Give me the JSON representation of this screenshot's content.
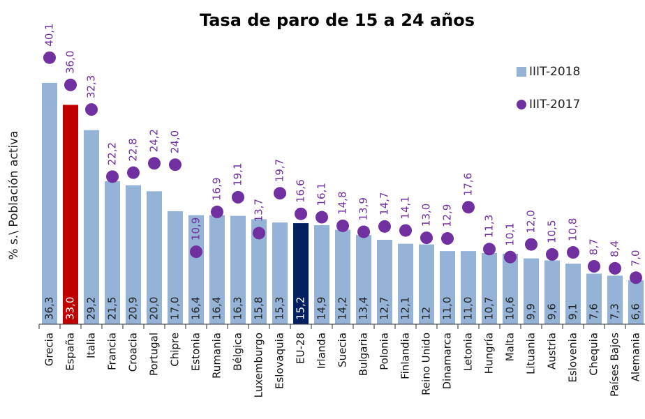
{
  "chart_data": {
    "type": "bar",
    "title": "Tasa de paro de 15 a 24 años",
    "y_label": "% s.\\ Población activa",
    "categories": [
      "Grecia",
      "España",
      "Italia",
      "Francia",
      "Croacia",
      "Portugal",
      "Chipre",
      "Estonia",
      "Rumania",
      "Bélgica",
      "Luxemburgo",
      "Eslovaquia",
      "EU-28",
      "Irlanda",
      "Suecia",
      "Bulgaria",
      "Polonia",
      "Finlandia",
      "Reino Unido",
      "Dinamarca",
      "Letonia",
      "Hungría",
      "Malta",
      "Lituania",
      "Austria",
      "Eslovenia",
      "Chequia",
      "Países Bajos",
      "Alemania"
    ],
    "ylim": [
      0,
      45
    ],
    "legend": "upper right",
    "series": [
      {
        "name": "IIIT-2018",
        "kind": "bar",
        "color": "#95b3d7",
        "colors": [
          "#95b3d7",
          "#c00000",
          "#95b3d7",
          "#95b3d7",
          "#95b3d7",
          "#95b3d7",
          "#95b3d7",
          "#95b3d7",
          "#95b3d7",
          "#95b3d7",
          "#95b3d7",
          "#95b3d7",
          "#002060",
          "#95b3d7",
          "#95b3d7",
          "#95b3d7",
          "#95b3d7",
          "#95b3d7",
          "#95b3d7",
          "#95b3d7",
          "#95b3d7",
          "#95b3d7",
          "#95b3d7",
          "#95b3d7",
          "#95b3d7",
          "#95b3d7",
          "#95b3d7",
          "#95b3d7",
          "#95b3d7"
        ],
        "values": [
          36.3,
          33.0,
          29.2,
          21.5,
          20.9,
          20.0,
          17.0,
          16.4,
          16.4,
          16.3,
          15.8,
          15.3,
          15.2,
          14.9,
          14.2,
          13.4,
          12.7,
          12.1,
          12,
          11.0,
          11.0,
          10.7,
          10.6,
          9.9,
          9.6,
          9.1,
          7.6,
          7.3,
          6.6
        ],
        "value_labels": [
          "36,3",
          "33,0",
          "29,2",
          "21,5",
          "20,9",
          "20,0",
          "17,0",
          "16,4",
          "16,4",
          "16,3",
          "15,8",
          "15,3",
          "15,2",
          "14,9",
          "14,2",
          "13,4",
          "12,7",
          "12,1",
          "12",
          "11,0",
          "11,0",
          "10,7",
          "10,6",
          "9,9",
          "9,6",
          "9,1",
          "7,6",
          "7,3",
          "6,6"
        ]
      },
      {
        "name": "IIIT-2017",
        "kind": "dot",
        "color": "#7030a0",
        "values": [
          40.1,
          36.0,
          32.3,
          22.2,
          22.8,
          24.2,
          24.0,
          10.9,
          16.9,
          19.1,
          13.7,
          19.7,
          16.6,
          16.1,
          14.8,
          13.9,
          14.7,
          14.1,
          13.0,
          12.9,
          17.6,
          11.3,
          10.1,
          12.0,
          10.5,
          10.8,
          8.7,
          8.4,
          7.0
        ],
        "value_labels": [
          "40,1",
          "36,0",
          "32,3",
          "22,2",
          "22,8",
          "24,2",
          "24,0",
          "10,9",
          "16,9",
          "19,1",
          "13,7",
          "19,7",
          "16,6",
          "16,1",
          "14,8",
          "13,9",
          "14,7",
          "14,1",
          "13,0",
          "12,9",
          "17,6",
          "11,3",
          "10,1",
          "12,0",
          "10,5",
          "10,8",
          "8,7",
          "8,4",
          "7,0"
        ]
      }
    ]
  }
}
